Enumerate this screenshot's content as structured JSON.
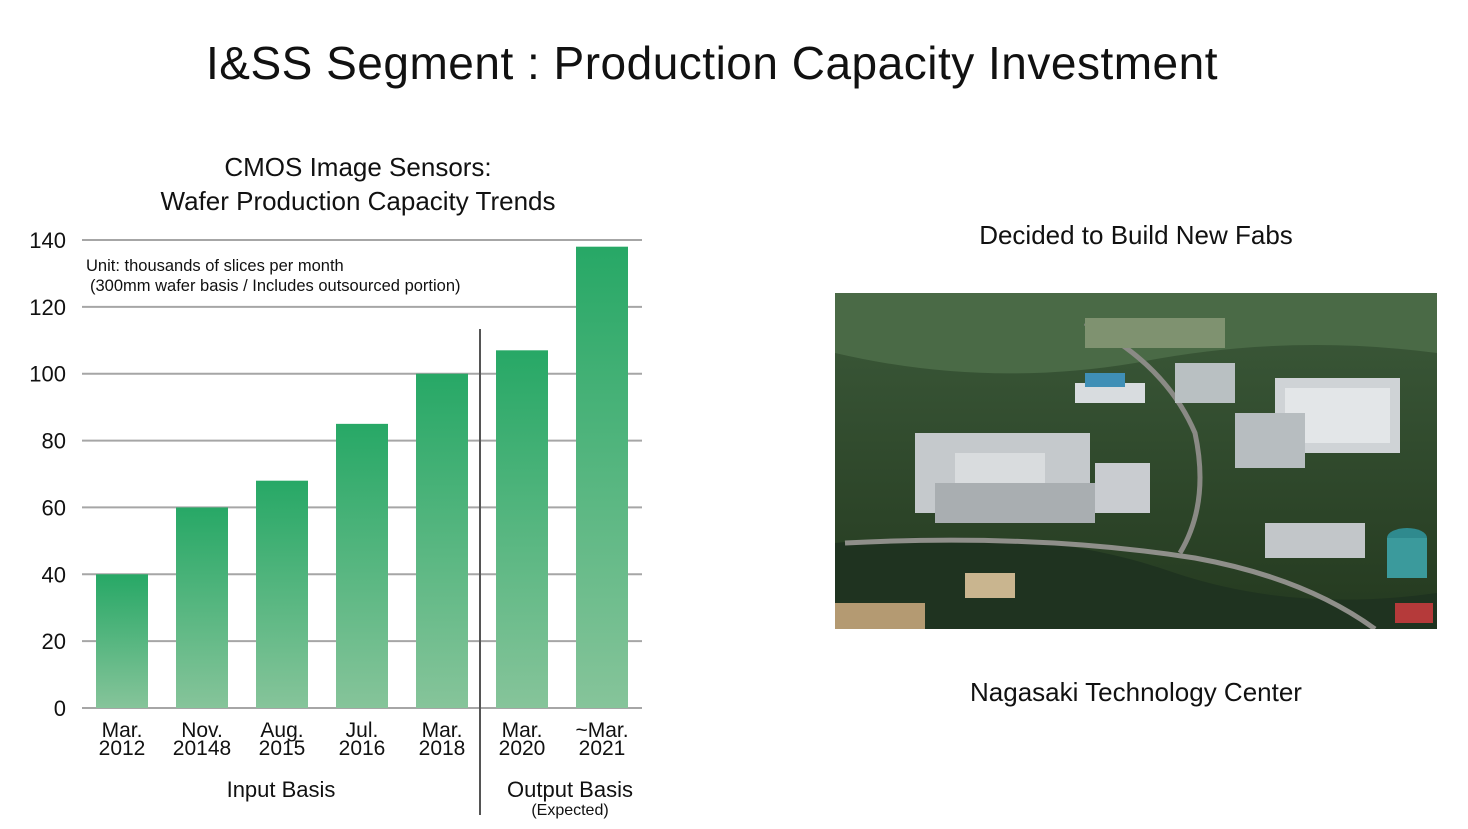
{
  "title": "I&SS Segment : Production Capacity Investment",
  "chart": {
    "title_line1": "CMOS Image Sensors:",
    "title_line2": "Wafer Production Capacity Trends",
    "unit_line1": "Unit: thousands of slices per month",
    "unit_line2": "(300mm wafer basis / Includes outsourced portion)",
    "group_labels": [
      {
        "label": "Input Basis",
        "sub": ""
      },
      {
        "label": "Output Basis",
        "sub": "(Expected)"
      }
    ]
  },
  "chart_data": {
    "type": "bar",
    "categories": [
      [
        "Mar.",
        "2012"
      ],
      [
        "Nov.",
        "20148"
      ],
      [
        "Aug.",
        "2015"
      ],
      [
        "Jul.",
        "2016"
      ],
      [
        "Mar.",
        "2018"
      ],
      [
        "Mar.",
        "2020"
      ],
      [
        "~Mar.",
        "2021"
      ]
    ],
    "values": [
      40,
      60,
      68,
      85,
      100,
      107,
      138
    ],
    "ylim": [
      0,
      140
    ],
    "yticks": [
      0,
      20,
      40,
      60,
      80,
      100,
      120,
      140
    ],
    "grid": true,
    "colors": {
      "bar_top": "#27a866",
      "bar_bottom": "#86c49a",
      "grid": "#a6a6a6",
      "divider": "#555555"
    }
  },
  "photo_panel": {
    "heading": "Decided to Build New Fabs",
    "caption": "Nagasaki Technology Center"
  }
}
